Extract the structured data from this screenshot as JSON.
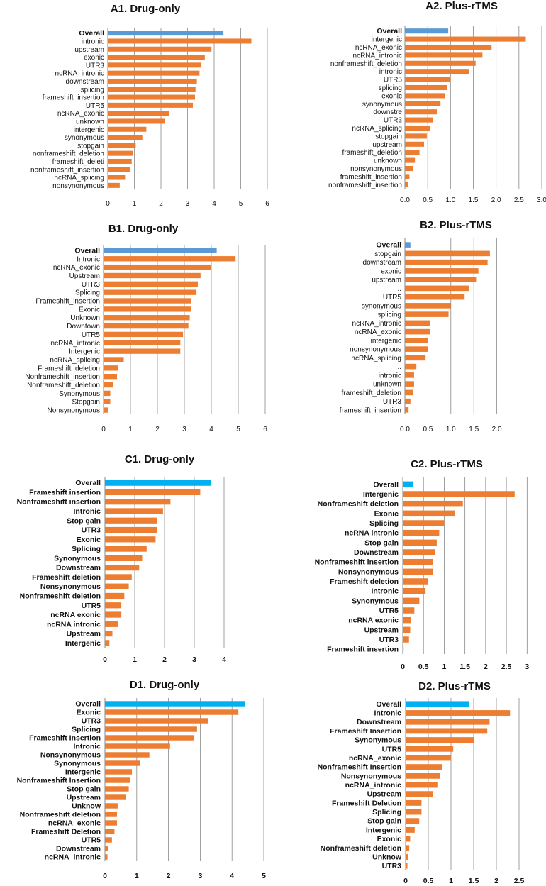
{
  "colors": {
    "overall_blue": "#5b9bd5",
    "overall_cyan": "#00b0f0",
    "bar": "#ed7d31",
    "grid": "#888888"
  },
  "chart_data": [
    {
      "id": "A1",
      "type": "bar",
      "orientation": "horizontal",
      "title": "A1. Drug-only",
      "categories": [
        "Overall",
        "intronic",
        "upstream",
        "exonic",
        "UTR3",
        "ncRNA_intronic",
        "downstream",
        "splicing",
        "frameshift_insertion",
        "UTR5",
        "ncRNA_exonic",
        "unknown",
        "intergenic",
        "synonymous",
        "stopgain",
        "nonframeshift_deletion",
        "frameshift_deleti",
        "nonframeshift_insertion",
        "ncRNA_splicing",
        "nonsynonymous"
      ],
      "values": [
        4.35,
        5.4,
        3.9,
        3.65,
        3.5,
        3.45,
        3.35,
        3.3,
        3.28,
        3.2,
        2.3,
        2.15,
        1.45,
        1.3,
        1.05,
        0.95,
        0.9,
        0.85,
        0.65,
        0.45
      ],
      "xlim": [
        0,
        6
      ],
      "ticks": [
        "0",
        "1",
        "2",
        "3",
        "4",
        "5",
        "6"
      ]
    },
    {
      "id": "A2",
      "type": "bar",
      "orientation": "horizontal",
      "title": "A2. Plus-rTMS",
      "categories": [
        "Overall",
        "intergenic",
        "ncRNA_exonic",
        "ncRNA_intronic",
        "nonframeshift_deletion",
        "intronic",
        "UTR5",
        "splicing",
        "exonic",
        "synonymous",
        "downstre",
        "UTR3",
        "ncRNA_splicing",
        "stopgain",
        "upstream",
        "frameshift_deletion",
        "unknown",
        "nonsynonymous",
        "frameshift_insertion",
        "nonframeshift_insertion"
      ],
      "values": [
        0.95,
        2.65,
        1.9,
        1.7,
        1.55,
        1.4,
        1.0,
        0.92,
        0.88,
        0.78,
        0.7,
        0.62,
        0.55,
        0.48,
        0.42,
        0.32,
        0.22,
        0.18,
        0.1,
        0.07
      ],
      "xlim": [
        0,
        3
      ],
      "ticks": [
        "0.0",
        "0.5",
        "1.0",
        "1.5",
        "2.0",
        "2.5",
        "3.0"
      ]
    },
    {
      "id": "B1",
      "type": "bar",
      "orientation": "horizontal",
      "title": "B1.  Drug-only",
      "categories": [
        "Overall",
        "Intronic",
        "ncRNA_exonic",
        "Upstream",
        "UTR3",
        "Splicing",
        "Frameshift_insertion",
        "Exonic",
        "Unknown",
        "Downtown",
        "UTR5",
        "ncRNA_intronic",
        "Intergenic",
        "ncRNA_splicing",
        "Frameshift_deletion",
        "Nonframeshift_insertion",
        "Nonframeshift_deletion",
        "Synonymous",
        "Stopgain",
        "Nonsynonymous"
      ],
      "values": [
        4.2,
        4.9,
        4.0,
        3.6,
        3.5,
        3.45,
        3.25,
        3.25,
        3.2,
        3.15,
        2.95,
        2.85,
        2.85,
        0.75,
        0.55,
        0.5,
        0.35,
        0.25,
        0.25,
        0.18
      ],
      "xlim": [
        0,
        6
      ],
      "ticks": [
        "0",
        "1",
        "2",
        "3",
        "4",
        "5",
        "6"
      ]
    },
    {
      "id": "B2",
      "type": "bar",
      "orientation": "horizontal",
      "title": "B2. Plus-rTMS",
      "categories": [
        "Overall",
        "stopgain",
        "downstream",
        "exonic",
        "upstream",
        "..",
        "UTR5",
        "synonymous",
        "splicing",
        "ncRNA_intronic",
        "ncRNA_exonic",
        "intergenic",
        "nonsynonymous",
        "ncRNA_splicing",
        "..",
        "intronic",
        "unknown",
        "frameshift_deletion",
        "UTR3",
        "frameshift_insertion"
      ],
      "values": [
        0.12,
        1.85,
        1.8,
        1.6,
        1.55,
        1.4,
        1.3,
        1.0,
        0.95,
        0.55,
        0.55,
        0.5,
        0.5,
        0.45,
        0.25,
        0.2,
        0.2,
        0.18,
        0.12,
        0.08
      ],
      "xlim": [
        0,
        2.5
      ],
      "ticks": [
        "0.0",
        "0.5",
        "1.0",
        "1.5",
        "2.0"
      ]
    },
    {
      "id": "C1",
      "type": "bar",
      "orientation": "horizontal",
      "title": "C1. Drug-only",
      "categories": [
        "Overall",
        "Frameshift insertion",
        "Nonframeshift insertion",
        "Intronic",
        "Stop gain",
        "UTR3",
        "Exonic",
        "Splicing",
        "Synonymous",
        "Downstream",
        "Frameshift deletion",
        "Nonsynonymous",
        "Nonframeshift deletion",
        "UTR5",
        "ncRNA exonic",
        "ncRNA intronic",
        "Upstream",
        "Intergenic"
      ],
      "values": [
        3.55,
        3.2,
        2.2,
        1.95,
        1.75,
        1.75,
        1.7,
        1.4,
        1.25,
        1.15,
        0.9,
        0.8,
        0.65,
        0.55,
        0.55,
        0.45,
        0.25,
        0.15
      ],
      "xlim": [
        0,
        4.5
      ],
      "ticks": [
        "0",
        "1",
        "2",
        "3",
        "4"
      ]
    },
    {
      "id": "C2",
      "type": "bar",
      "orientation": "horizontal",
      "title": "C2.  Plus-rTMS",
      "categories": [
        "Overall",
        "Intergenic",
        "Nonframeshift deletion",
        "Exonic",
        "Splicing",
        "ncRNA intronic",
        "Stop gain",
        "Downstream",
        "Nonframeshift insertion",
        "Nonsynonymous",
        "Frameshift deletion",
        "Intronic",
        "Synonymous",
        "UTR5",
        "ncRNA exonic",
        "Upstream",
        "UTR3",
        "Frameshift insertion"
      ],
      "values": [
        0.25,
        2.7,
        1.45,
        1.25,
        1.0,
        0.88,
        0.82,
        0.78,
        0.72,
        0.72,
        0.6,
        0.55,
        0.4,
        0.28,
        0.2,
        0.18,
        0.15,
        0.02
      ],
      "xlim": [
        0,
        3.2
      ],
      "ticks": [
        "0",
        "0.5",
        "1",
        "1.5",
        "2",
        "2.5",
        "3"
      ]
    },
    {
      "id": "D1",
      "type": "bar",
      "orientation": "horizontal",
      "title": "D1. Drug-only",
      "categories": [
        "Overall",
        "Exonic",
        "UTR3",
        "Splicing",
        "Frameshift Insertion",
        "Intronic",
        "Nonsynonymous",
        "Synonymous",
        "Intergenic",
        "Nonframeshift Insertion",
        "Stop gain",
        "Upstream",
        "Unknow",
        "Nonframeshift deletion",
        "ncRNA_exonic",
        "Frameshift Deletion",
        "UTR5",
        "Downstream",
        "ncRNA_intronic"
      ],
      "values": [
        4.4,
        4.2,
        3.25,
        2.9,
        2.8,
        2.05,
        1.4,
        1.1,
        0.85,
        0.8,
        0.75,
        0.65,
        0.4,
        0.38,
        0.38,
        0.3,
        0.22,
        0.1,
        0.08
      ],
      "xlim": [
        0,
        5
      ],
      "ticks": [
        "0",
        "1",
        "2",
        "3",
        "4",
        "5"
      ]
    },
    {
      "id": "D2",
      "type": "bar",
      "orientation": "horizontal",
      "title": "D2. Plus-rTMS",
      "categories": [
        "Overall",
        "Intronic",
        "Downstream",
        "Frameshift Insertion",
        "Synonymous",
        "UTR5",
        "ncRNA_exonic",
        "Nonframeshift Insertion",
        "Nonsynonymous",
        "ncRNA_intronic",
        "Upstream",
        "Frameshift Deletion",
        "Splicing",
        "Stop gain",
        "Intergenic",
        "Exonic",
        "Nonframeshift deletion",
        "Unknow",
        "UTR3"
      ],
      "values": [
        1.4,
        2.3,
        1.85,
        1.8,
        1.5,
        1.05,
        1.0,
        0.8,
        0.75,
        0.7,
        0.6,
        0.35,
        0.35,
        0.3,
        0.2,
        0.1,
        0.08,
        0.06,
        0.04
      ],
      "xlim": [
        0,
        3
      ],
      "ticks": [
        "0",
        "0.5",
        "1",
        "1.5",
        "2",
        "2.5"
      ]
    }
  ]
}
